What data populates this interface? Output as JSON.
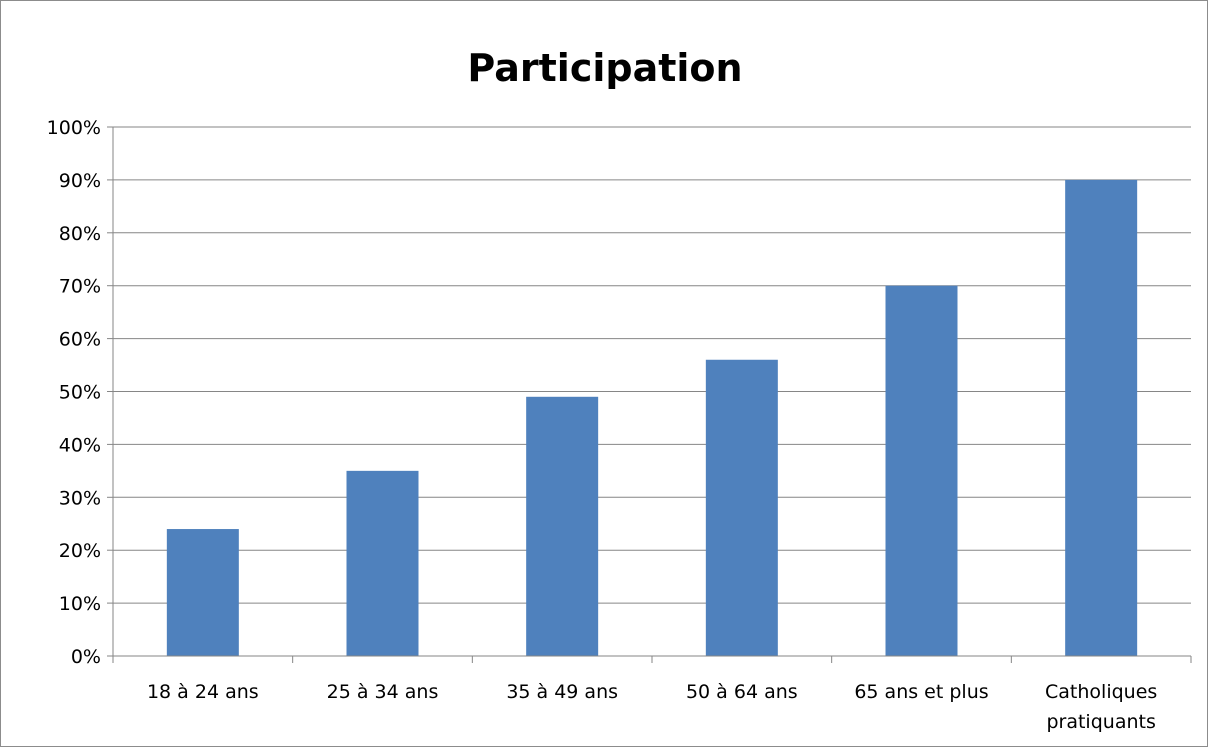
{
  "chart_data": {
    "type": "bar",
    "title": "Participation",
    "categories": [
      "18 à 24 ans",
      "25 à 34 ans",
      "35 à 49 ans",
      "50 à 64 ans",
      "65 ans et plus",
      "Catholiques pratiquants"
    ],
    "values": [
      24,
      35,
      49,
      56,
      70,
      90
    ],
    "ylim": [
      0,
      100
    ],
    "ytick_labels": [
      "0%",
      "10%",
      "20%",
      "30%",
      "40%",
      "50%",
      "60%",
      "70%",
      "80%",
      "90%",
      "100%"
    ],
    "xlabel": "",
    "ylabel": "",
    "grid": true,
    "legend": "none",
    "bar_color": "#4f81bd"
  }
}
